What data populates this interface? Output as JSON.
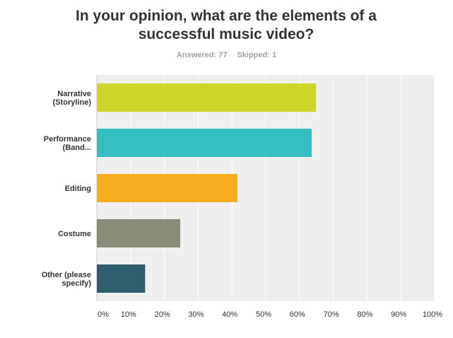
{
  "header": {
    "title_line1": "In your opinion, what are the elements of a",
    "title_line2": "successful music video?",
    "answered_label": "Answered: 77",
    "skipped_label": "Skipped: 1"
  },
  "chart_data": {
    "type": "bar",
    "orientation": "horizontal",
    "categories": [
      [
        "Narrative",
        "(Storyline)"
      ],
      [
        "Performance",
        "(Band..."
      ],
      [
        "Editing"
      ],
      [
        "Costume"
      ],
      [
        "Other (please",
        "specify)"
      ]
    ],
    "values": [
      64.9,
      63.6,
      41.6,
      24.7,
      14.3
    ],
    "colors": [
      "#cfd62a",
      "#36bfc0",
      "#f6ad1e",
      "#8b8b7a",
      "#2f5e6d"
    ],
    "xlim": [
      0,
      100
    ],
    "ticks": [
      "0%",
      "10%",
      "20%",
      "30%",
      "40%",
      "50%",
      "60%",
      "70%",
      "80%",
      "90%",
      "100%"
    ],
    "grid": true,
    "plot_background": "#efefef"
  }
}
